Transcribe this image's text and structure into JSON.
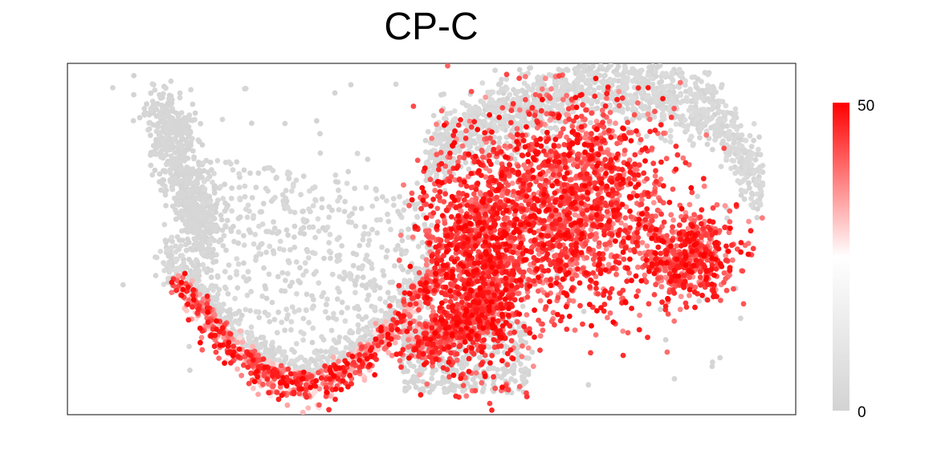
{
  "chart_data": {
    "type": "scatter",
    "title": "CP-C",
    "xlabel": "",
    "ylabel": "",
    "axes_visible": false,
    "grid": false,
    "legend": {
      "type": "colorbar",
      "placement": "right",
      "min": 0,
      "max": 50,
      "labels": [
        "50",
        "0"
      ],
      "colors": [
        "#d3d3d3",
        "#ffffff",
        "#ff0000"
      ]
    },
    "point_color_low": "#d3d3d3",
    "point_color_high": "#ff0000"
  }
}
